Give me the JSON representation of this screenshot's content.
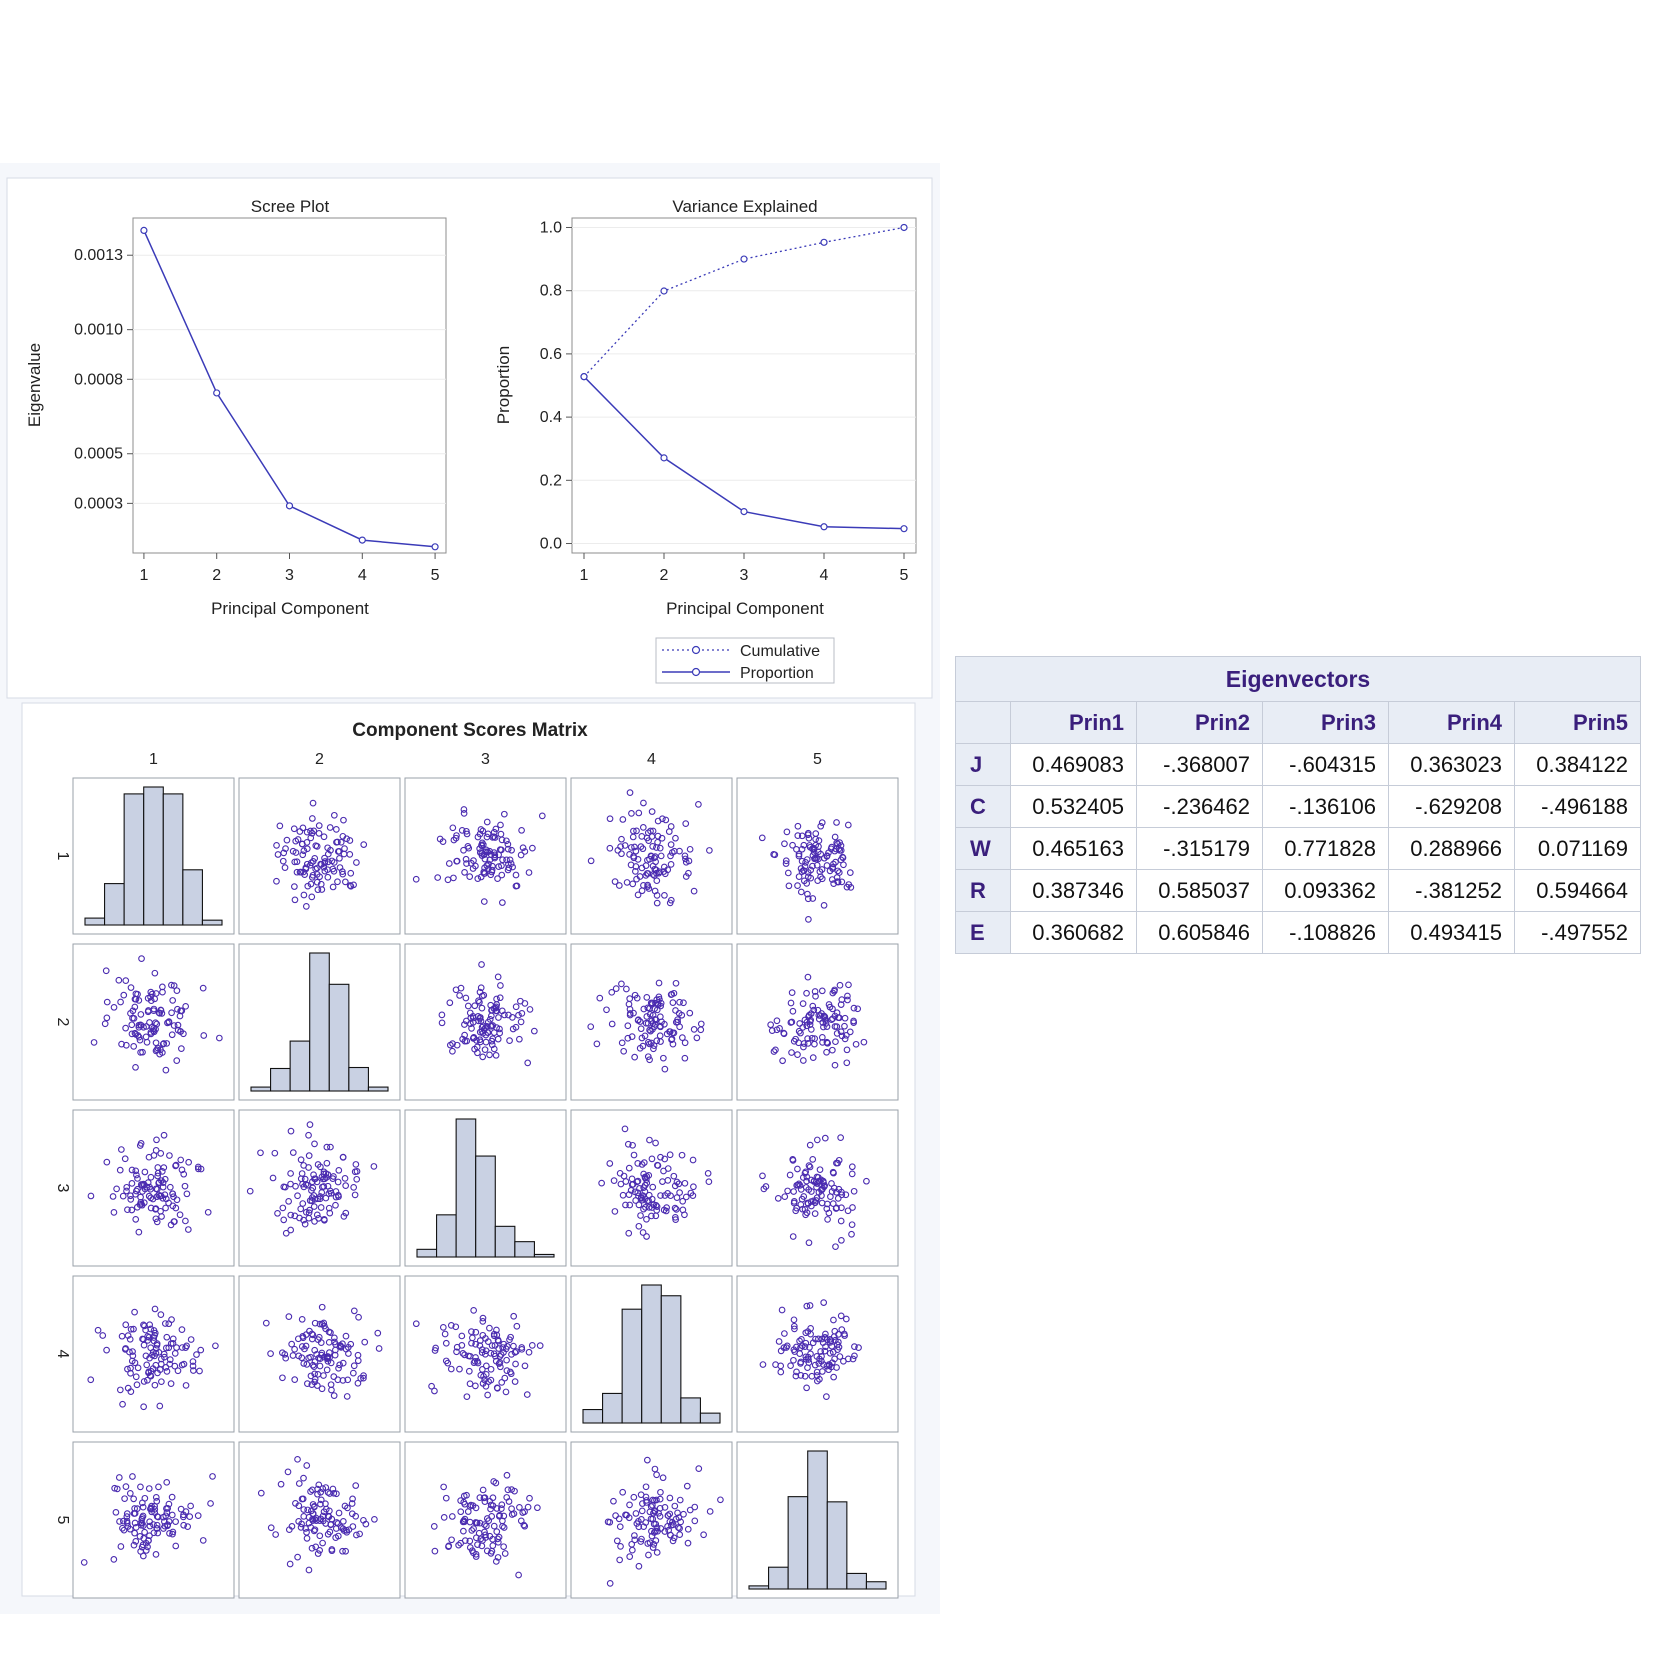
{
  "chart_data": [
    {
      "type": "line",
      "title": "Scree Plot",
      "xlabel": "Principal Component",
      "ylabel": "Eigenvalue",
      "x": [
        1,
        2,
        3,
        4,
        5
      ],
      "y": [
        0.0014,
        0.000745,
        0.00029,
        0.000152,
        0.000125
      ],
      "xlim": [
        0.85,
        5.15
      ],
      "ylim": [
        0.0001,
        0.00145
      ],
      "yticks": [
        "0.0003",
        "0.0005",
        "0.0008",
        "0.0010",
        "0.0013"
      ],
      "ytick_values": [
        0.0003,
        0.0005,
        0.0008,
        0.001,
        0.0013
      ],
      "xticks": [
        "1",
        "2",
        "3",
        "4",
        "5"
      ],
      "color": "#3b3bb8"
    },
    {
      "type": "line",
      "title": "Variance Explained",
      "xlabel": "Principal Component",
      "ylabel": "Proportion",
      "x": [
        1,
        2,
        3,
        4,
        5
      ],
      "xlim": [
        0.85,
        5.15
      ],
      "ylim": [
        -0.03,
        1.03
      ],
      "yticks": [
        "0.0",
        "0.2",
        "0.4",
        "0.6",
        "0.8",
        "1.0"
      ],
      "ytick_values": [
        0.0,
        0.2,
        0.4,
        0.6,
        0.8,
        1.0
      ],
      "xticks": [
        "1",
        "2",
        "3",
        "4",
        "5"
      ],
      "series": [
        {
          "name": "Cumulative",
          "values": [
            0.528,
            0.799,
            0.9,
            0.953,
            1.0
          ],
          "style": "dotted"
        },
        {
          "name": "Proportion",
          "values": [
            0.528,
            0.271,
            0.101,
            0.053,
            0.047
          ],
          "style": "solid"
        }
      ],
      "legend": "bottom-center",
      "color": "#3b3bb8"
    },
    {
      "type": "scatter-matrix",
      "title": "Component Scores Matrix",
      "labels": [
        "1",
        "2",
        "3",
        "4",
        "5"
      ],
      "histograms": [
        [
          1,
          6,
          19,
          20,
          19,
          8,
          0.7
        ],
        [
          0.4,
          2.3,
          5.1,
          14.1,
          10.9,
          2.4,
          0.4
        ],
        [
          0.6,
          3.3,
          10.8,
          7.9,
          2.4,
          1.2,
          0.2
        ],
        [
          1.5,
          3.3,
          12.7,
          15.4,
          14.2,
          2.8,
          1.1
        ],
        [
          0.3,
          2.1,
          8.9,
          13.3,
          8.4,
          1.5,
          0.7
        ]
      ],
      "scatter_points_per_panel": 110,
      "color": "#4a2bb0"
    }
  ],
  "legend": {
    "cumulative": "Cumulative",
    "proportion": "Proportion"
  },
  "eigenvectors": {
    "title": "Eigenvectors",
    "columns": [
      "Prin1",
      "Prin2",
      "Prin3",
      "Prin4",
      "Prin5"
    ],
    "rows": [
      {
        "label": "J",
        "values": [
          "0.469083",
          "-.368007",
          "-.604315",
          "0.363023",
          "0.384122"
        ]
      },
      {
        "label": "C",
        "values": [
          "0.532405",
          "-.236462",
          "-.136106",
          "-.629208",
          "-.496188"
        ]
      },
      {
        "label": "W",
        "values": [
          "0.465163",
          "-.315179",
          "0.771828",
          "0.288966",
          "0.071169"
        ]
      },
      {
        "label": "R",
        "values": [
          "0.387346",
          "0.585037",
          "0.093362",
          "-.381252",
          "0.594664"
        ]
      },
      {
        "label": "E",
        "values": [
          "0.360682",
          "0.605846",
          "-.108826",
          "0.493415",
          "-.497552"
        ]
      }
    ]
  }
}
